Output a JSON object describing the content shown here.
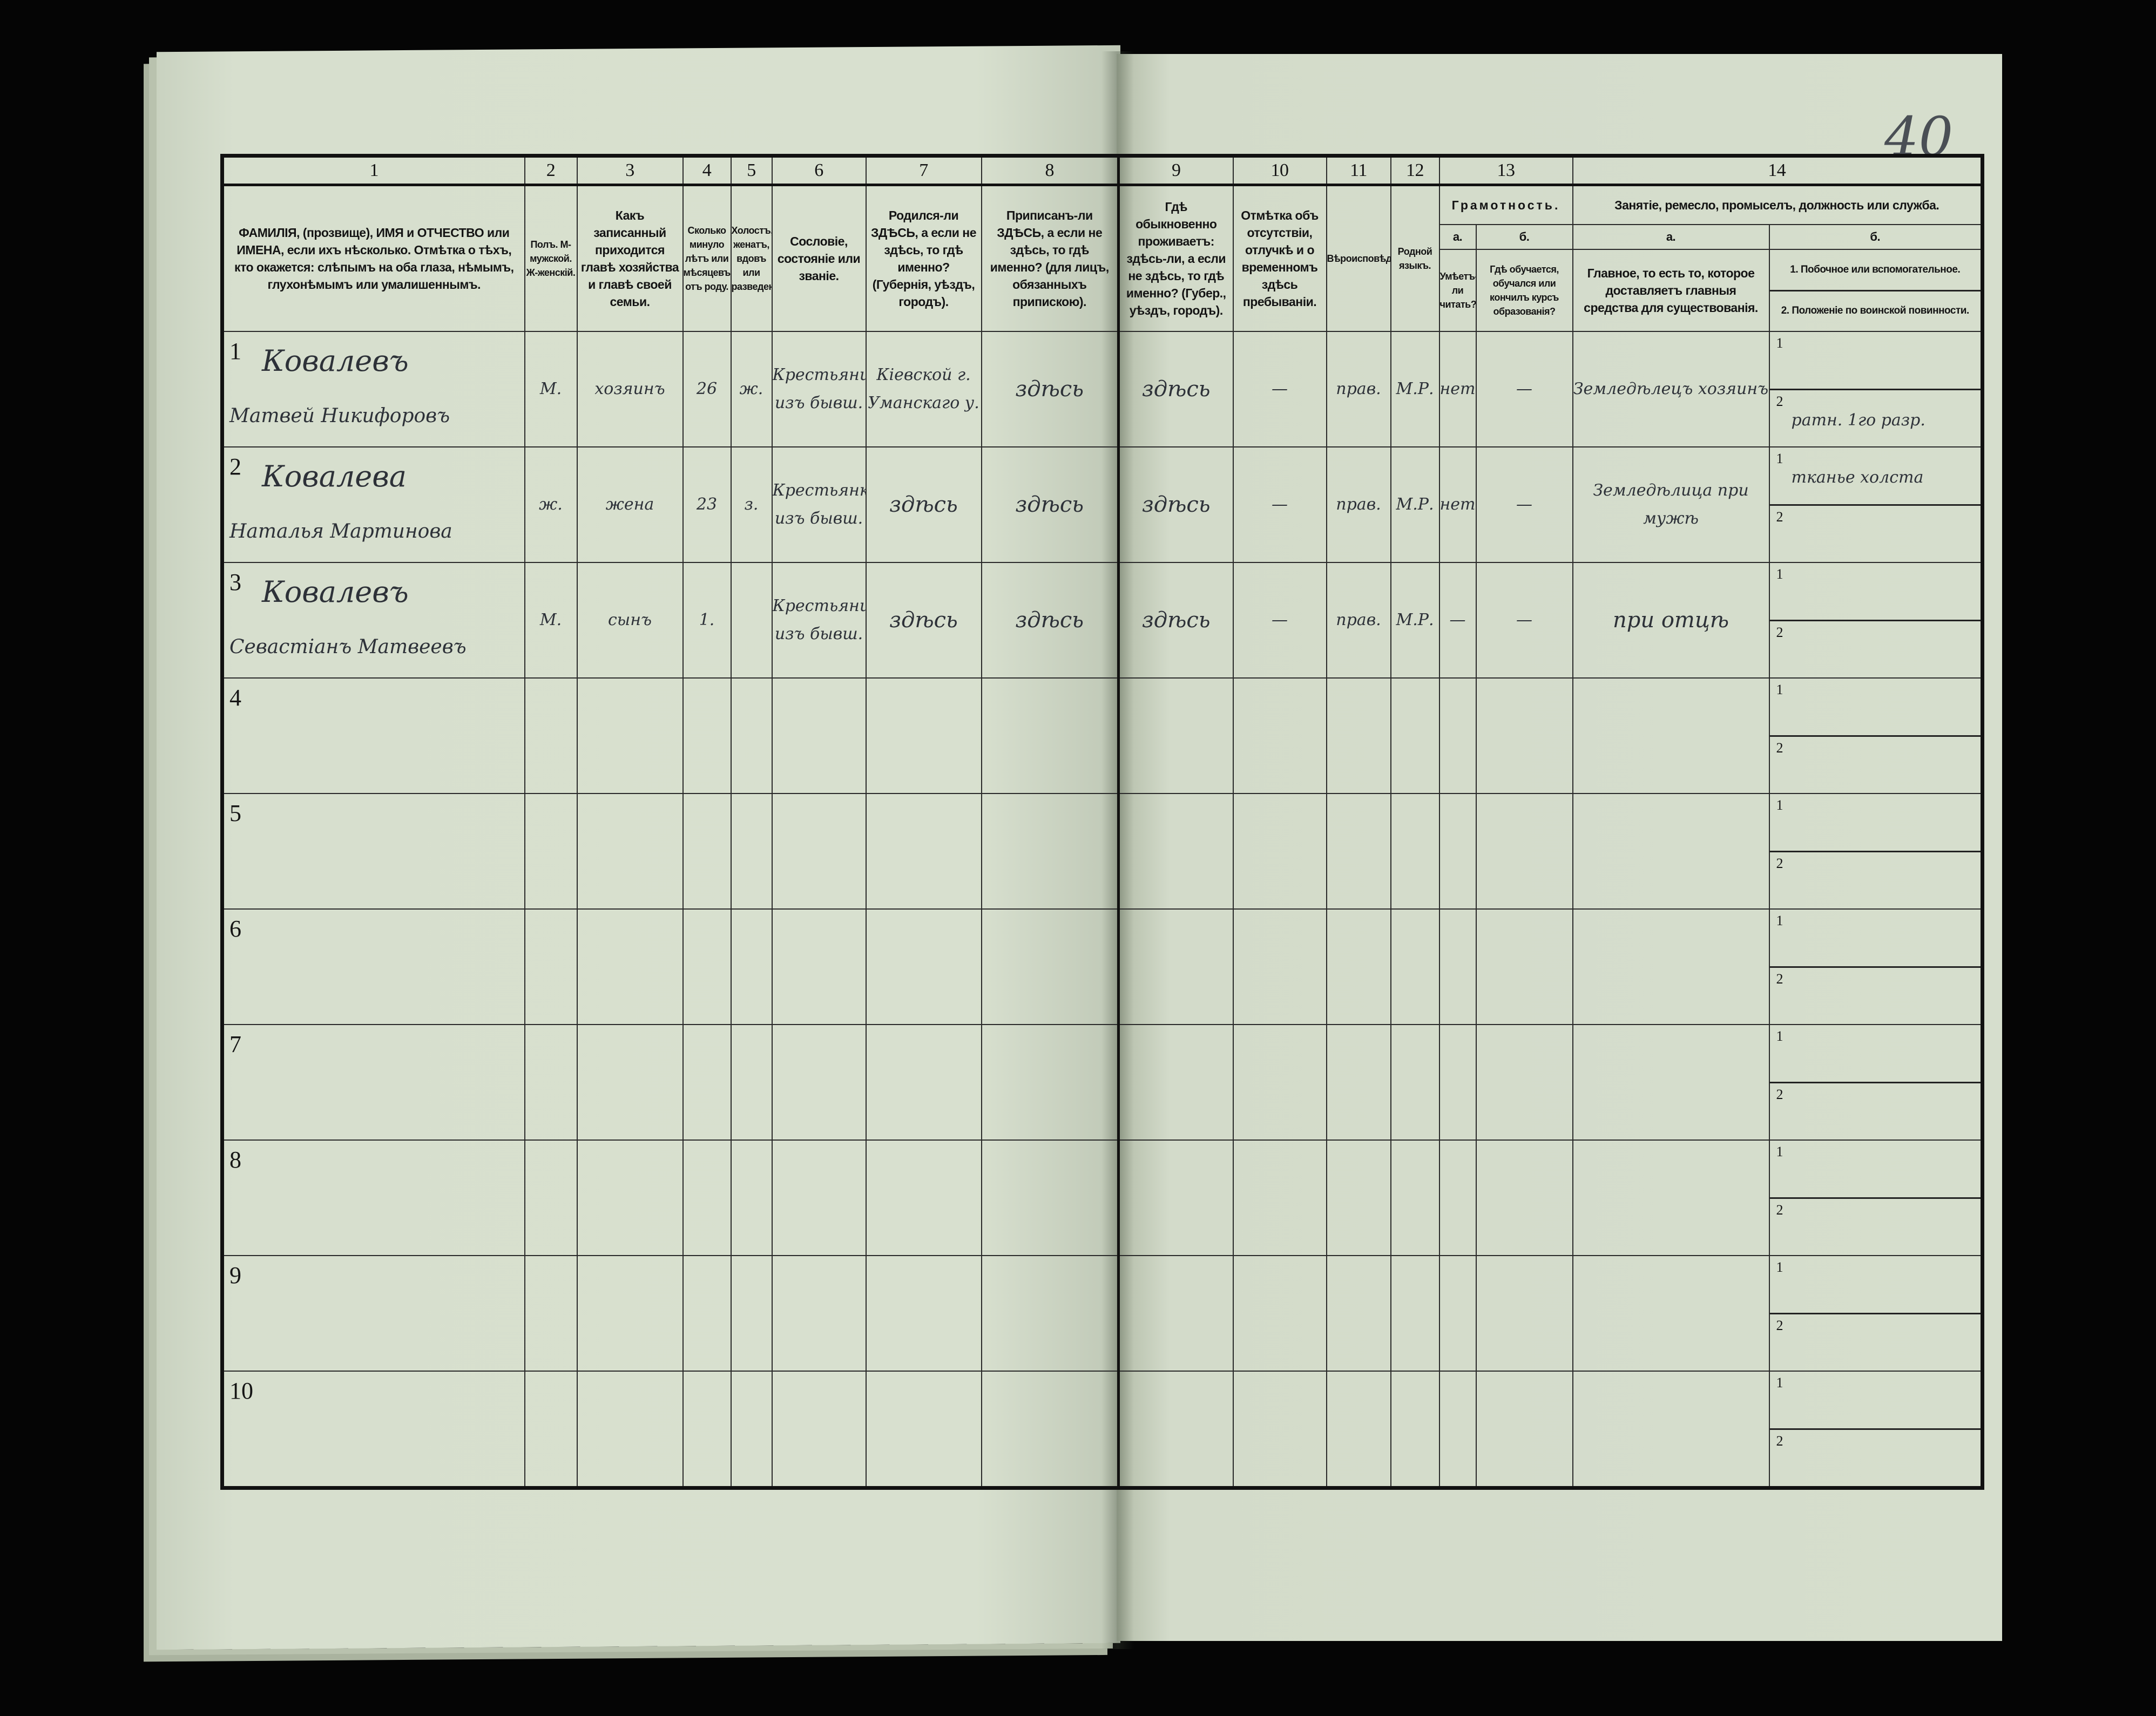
{
  "page_number": "40",
  "header": {
    "numbers": [
      "1",
      "2",
      "3",
      "4",
      "5",
      "6",
      "7",
      "8",
      "9",
      "10",
      "11",
      "12",
      "13",
      "14"
    ],
    "col1": "ФАМИЛІЯ, (прозвище), ИМЯ и ОТЧЕСТВО или ИМЕНА, если ихъ нѣсколько. Отмѣтка о тѣхъ, кто окажется: слѣпымъ на оба глаза, нѣмымъ, глухонѣмымъ или умалишеннымъ.",
    "col2": "Полъ. М-мужской. Ж-женскій.",
    "col3": "Какъ записанный приходится главѣ хозяйства и главѣ своей семьи.",
    "col4": "Сколько минуло лѣтъ или мѣсяцевъ отъ роду.",
    "col5": "Холостъ, женатъ, вдовъ или разведенъ.",
    "col6": "Сословіе, состояніе или званіе.",
    "col7": "Родился-ли ЗДѢСЬ, а если не здѣсь, то гдѣ именно? (Губернія, уѣздъ, городъ).",
    "col8": "Приписанъ-ли ЗДѢСЬ, а если не здѣсь, то гдѣ именно? (для лицъ, обязанныхъ припискою).",
    "col9": "Гдѣ обыкновенно проживаетъ: здѣсь-ли, а если не здѣсь, то гдѣ именно? (Губер., уѣздъ, городъ).",
    "col10": "Отмѣтка объ отсутствіи, отлучкѣ и о временномъ здѣсь пребываніи.",
    "col11": "Вѣроисповѣданіе.",
    "col12": "Родной языкъ.",
    "col13": "Грамотность.",
    "col13a_letter": "а.",
    "col13b_letter": "б.",
    "col13a": "Умѣетъ-ли читать?",
    "col13b": "Гдѣ обучается, обучался или кончилъ курсъ образованія?",
    "col14": "Занятіе, ремесло, промыселъ, должность или служба.",
    "col14a_letter": "а.",
    "col14b_letter": "б.",
    "col14a": "Главное, то есть то, которое доставляетъ главныя средства для существованія.",
    "col14b_1": "1. Побочное или вспомогательное.",
    "col14b_2": "2. Положеніе по воинской повинности."
  },
  "sub_labels": [
    "1",
    "2"
  ],
  "rows": [
    {
      "num": "1",
      "surname": "Ковалевъ",
      "given": "Матвей Никифоровъ",
      "sex": "М.",
      "relation": "хозяинъ",
      "age": "26",
      "marital": "ж.",
      "estate": "Крестьянинъ изъ бывш.",
      "born": "Кіевской г. Уманскаго у.",
      "registered": "здѣсь",
      "resides": "здѣсь",
      "absence": "—",
      "religion": "прав.",
      "language": "М.Р.",
      "reads": "нетъ",
      "education": "—",
      "main_occupation": "Земледѣлецъ хозяинъ",
      "side_occupation": "",
      "military": "ратн. 1го разр."
    },
    {
      "num": "2",
      "surname": "Ковалева",
      "given": "Наталья Мартинова",
      "sex": "ж.",
      "relation": "жена",
      "age": "23",
      "marital": "з.",
      "estate": "Крестьянка изъ бывш.",
      "born": "здѣсь",
      "registered": "здѣсь",
      "resides": "здѣсь",
      "absence": "—",
      "religion": "прав.",
      "language": "М.Р.",
      "reads": "нетъ",
      "education": "—",
      "main_occupation": "Земледѣлица при мужѣ",
      "side_occupation": "тканье холста",
      "military": ""
    },
    {
      "num": "3",
      "surname": "Ковалевъ",
      "given": "Севастіанъ Матвеевъ",
      "sex": "М.",
      "relation": "сынъ",
      "age": "1.",
      "marital": "",
      "estate": "Крестьянинъ изъ бывш.",
      "born": "здѣсь",
      "registered": "здѣсь",
      "resides": "здѣсь",
      "absence": "—",
      "religion": "прав.",
      "language": "М.Р.",
      "reads": "—",
      "education": "—",
      "main_occupation": "при отцѣ",
      "side_occupation": "",
      "military": ""
    },
    {
      "num": "4"
    },
    {
      "num": "5"
    },
    {
      "num": "6"
    },
    {
      "num": "7"
    },
    {
      "num": "8"
    },
    {
      "num": "9"
    },
    {
      "num": "10"
    }
  ],
  "colors": {
    "paper": "#d6decd",
    "ink": "#2d3138",
    "background": "#050505"
  }
}
